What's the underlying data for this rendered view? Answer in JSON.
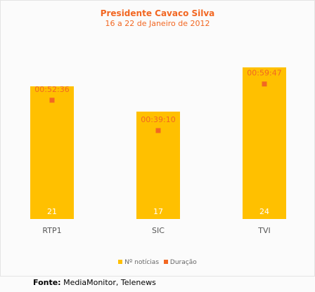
{
  "chart_data": {
    "type": "bar",
    "title": "Presidente Cavaco Silva",
    "subtitle": "16 a 22 de Janeiro de 2012",
    "categories": [
      "RTP1",
      "SIC",
      "TVI"
    ],
    "series": [
      {
        "name": "Nº notícias",
        "type": "bar",
        "values": [
          21,
          17,
          24
        ],
        "color": "#ffc000"
      },
      {
        "name": "Duração",
        "type": "scatter",
        "values": [
          "00:52:36",
          "00:39:10",
          "00:59:47"
        ],
        "color": "#f26722"
      }
    ],
    "ylim": [
      0,
      28
    ],
    "duration_ylim_seconds": [
      0,
      4700
    ],
    "grid": false,
    "legend": "bottom"
  },
  "source": {
    "label": "Fonte:",
    "text": "MediaMonitor, Telenews"
  }
}
